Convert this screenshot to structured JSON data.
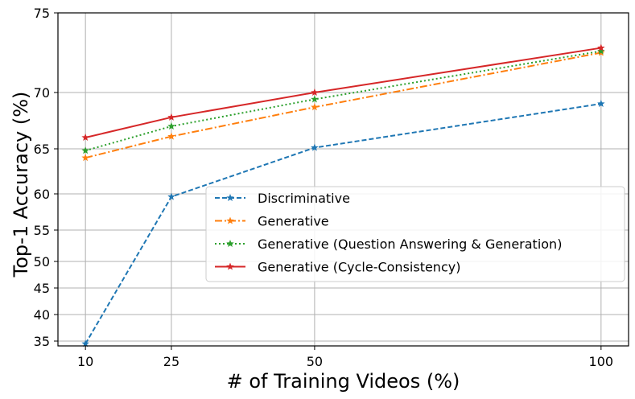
{
  "chart_data": {
    "type": "line",
    "xlabel": "# of Training Videos (%)",
    "ylabel": "Top-1 Accuracy (%)",
    "x": [
      10,
      25,
      50,
      100
    ],
    "x_ticks": [
      "10",
      "25",
      "50",
      "100"
    ],
    "y_ticks": [
      "35",
      "40",
      "45",
      "50",
      "55",
      "60",
      "65",
      "70",
      "75"
    ],
    "y_tick_values": [
      35,
      40,
      45,
      50,
      55,
      60,
      65,
      70,
      75
    ],
    "grid": true,
    "legend_position": "lower-right",
    "series": [
      {
        "name": "Discriminative",
        "values": [
          34.5,
          59.6,
          65.1,
          69.0
        ],
        "color": "#1f77b4",
        "dash": "dashed"
      },
      {
        "name": "Generative",
        "values": [
          64.0,
          66.1,
          68.7,
          72.5
        ],
        "color": "#ff7f0e",
        "dash": "dashdot"
      },
      {
        "name": "Generative (Question Answering & Generation)",
        "values": [
          64.8,
          67.0,
          69.4,
          72.6
        ],
        "color": "#2ca02c",
        "dash": "dotted"
      },
      {
        "name": "Generative (Cycle-Consistency)",
        "values": [
          66.0,
          67.8,
          70.0,
          72.8
        ],
        "color": "#d62728",
        "dash": "solid"
      }
    ]
  }
}
